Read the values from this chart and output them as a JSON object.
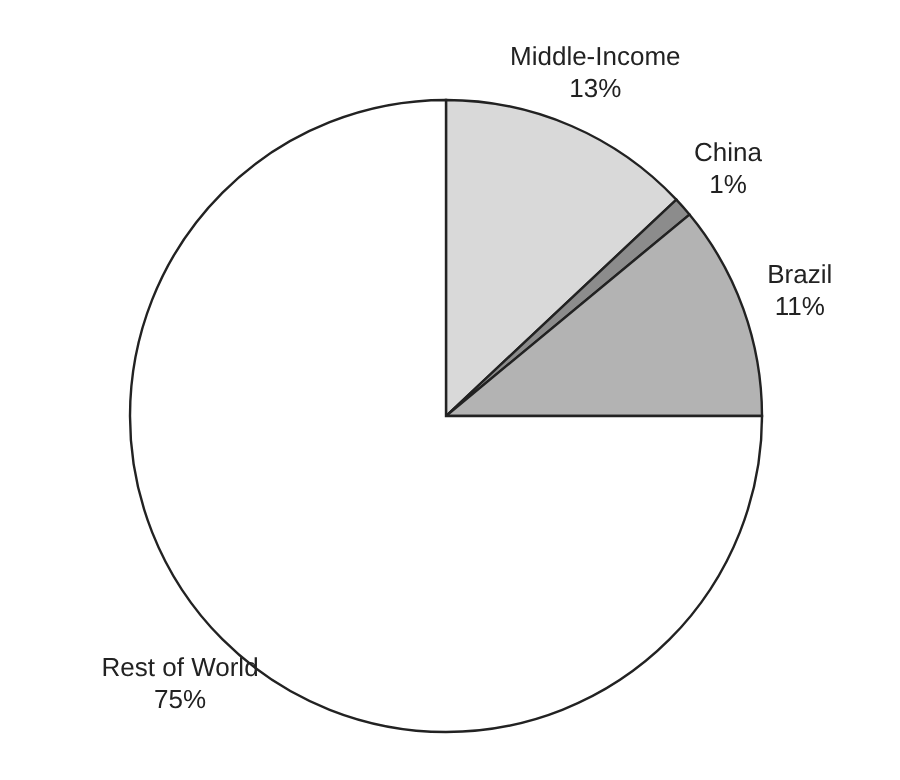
{
  "chart_data": {
    "type": "pie",
    "categories": [
      "Middle-Income",
      "China",
      "Brazil",
      "Rest of World"
    ],
    "values": [
      13,
      1,
      11,
      75
    ],
    "value_labels": [
      "13%",
      "1%",
      "11%",
      "75%"
    ],
    "colors": [
      "#d9d9d9",
      "#8c8c8c",
      "#b3b3b3",
      "#ffffff"
    ]
  }
}
